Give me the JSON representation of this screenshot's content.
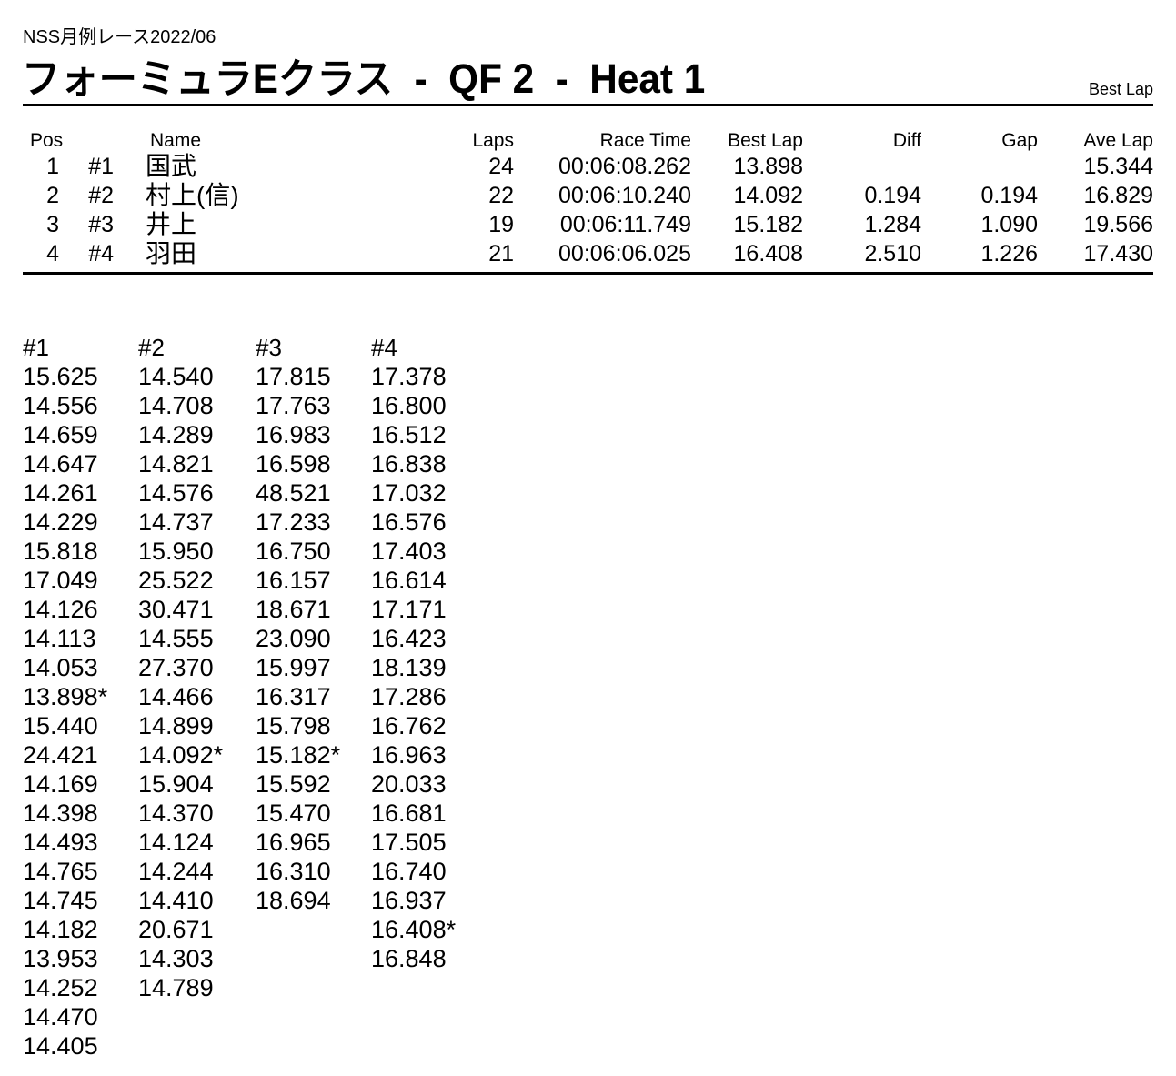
{
  "header": {
    "event": "NSS月例レース2022/06",
    "title": "フォーミュラEクラス  -  QF 2  -  Heat 1",
    "corner_label": "Best Lap"
  },
  "results": {
    "headers": {
      "pos": "Pos",
      "name": "Name",
      "laps": "Laps",
      "race_time": "Race Time",
      "best_lap": "Best Lap",
      "diff": "Diff",
      "gap": "Gap",
      "ave_lap": "Ave Lap"
    },
    "rows": [
      {
        "pos": "1",
        "car": "#1",
        "name": "国武",
        "laps": "24",
        "race_time": "00:06:08.262",
        "best_lap": "13.898",
        "diff": "",
        "gap": "",
        "ave_lap": "15.344"
      },
      {
        "pos": "2",
        "car": "#2",
        "name": "村上(信)",
        "laps": "22",
        "race_time": "00:06:10.240",
        "best_lap": "14.092",
        "diff": "0.194",
        "gap": "0.194",
        "ave_lap": "16.829"
      },
      {
        "pos": "3",
        "car": "#3",
        "name": "井上",
        "laps": "19",
        "race_time": "00:06:11.749",
        "best_lap": "15.182",
        "diff": "1.284",
        "gap": "1.090",
        "ave_lap": "19.566"
      },
      {
        "pos": "4",
        "car": "#4",
        "name": "羽田",
        "laps": "21",
        "race_time": "00:06:06.025",
        "best_lap": "16.408",
        "diff": "2.510",
        "gap": "1.226",
        "ave_lap": "17.430"
      }
    ]
  },
  "lap_chart": {
    "columns": [
      {
        "label": "#1",
        "laps": [
          "15.625",
          "14.556",
          "14.659",
          "14.647",
          "14.261",
          "14.229",
          "15.818",
          "17.049",
          "14.126",
          "14.113",
          "14.053",
          "13.898*",
          "15.440",
          "24.421",
          "14.169",
          "14.398",
          "14.493",
          "14.765",
          "14.745",
          "14.182",
          "13.953",
          "14.252",
          "14.470",
          "14.405"
        ]
      },
      {
        "label": "#2",
        "laps": [
          "14.540",
          "14.708",
          "14.289",
          "14.821",
          "14.576",
          "14.737",
          "15.950",
          "25.522",
          "30.471",
          "14.555",
          "27.370",
          "14.466",
          "14.899",
          "14.092*",
          "15.904",
          "14.370",
          "14.124",
          "14.244",
          "14.410",
          "20.671",
          "14.303",
          "14.789"
        ]
      },
      {
        "label": "#3",
        "laps": [
          "17.815",
          "17.763",
          "16.983",
          "16.598",
          "48.521",
          "17.233",
          "16.750",
          "16.157",
          "18.671",
          "23.090",
          "15.997",
          "16.317",
          "15.798",
          "15.182*",
          "15.592",
          "15.470",
          "16.965",
          "16.310",
          "18.694"
        ]
      },
      {
        "label": "#4",
        "laps": [
          "17.378",
          "16.800",
          "16.512",
          "16.838",
          "17.032",
          "16.576",
          "17.403",
          "16.614",
          "17.171",
          "16.423",
          "18.139",
          "17.286",
          "16.762",
          "16.963",
          "20.033",
          "16.681",
          "17.505",
          "16.740",
          "16.937",
          "16.408*",
          "16.848"
        ]
      }
    ]
  }
}
